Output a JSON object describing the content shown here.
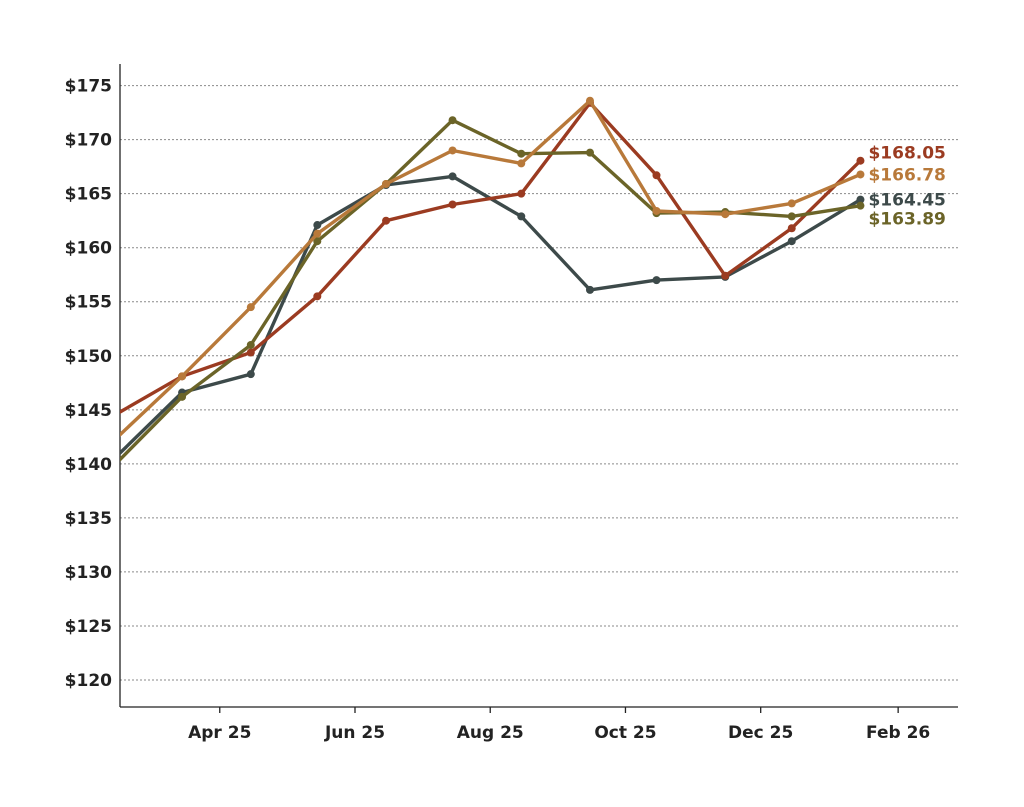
{
  "chart_data": {
    "type": "line",
    "title": "",
    "xlabel": "",
    "ylabel": "",
    "ylim": [
      117.5,
      177
    ],
    "xlim": [
      "2025-02-15",
      "2026-02-28"
    ],
    "grid": true,
    "legend": "none",
    "y_ticks": [
      120,
      125,
      130,
      135,
      140,
      145,
      150,
      155,
      160,
      165,
      170,
      175
    ],
    "y_tick_labels": [
      "$120",
      "$125",
      "$130",
      "$135",
      "$140",
      "$145",
      "$150",
      "$155",
      "$160",
      "$165",
      "$170",
      "$175"
    ],
    "x_ticks": [
      "2025-04-01",
      "2025-06-01",
      "2025-08-01",
      "2025-10-01",
      "2025-12-01",
      "2026-02-01"
    ],
    "x_tick_labels": [
      "Apr 25",
      "Jun 25",
      "Aug 25",
      "Oct 25",
      "Dec 25",
      "Feb 26"
    ],
    "series": [
      {
        "color": "#3d4a4a",
        "end_label": "$164.45",
        "points": [
          {
            "x": "2025-02-15",
            "y": 141.0
          },
          {
            "x": "2025-03-15",
            "y": 146.6
          },
          {
            "x": "2025-04-15",
            "y": 148.3
          },
          {
            "x": "2025-05-15",
            "y": 162.1
          },
          {
            "x": "2025-06-15",
            "y": 165.8
          },
          {
            "x": "2025-07-15",
            "y": 166.6
          },
          {
            "x": "2025-08-15",
            "y": 162.9
          },
          {
            "x": "2025-09-15",
            "y": 156.1
          },
          {
            "x": "2025-10-15",
            "y": 157.0
          },
          {
            "x": "2025-11-15",
            "y": 157.3
          },
          {
            "x": "2025-12-15",
            "y": 160.6
          },
          {
            "x": "2026-01-15",
            "y": 164.45
          }
        ]
      },
      {
        "color": "#9b3b21",
        "end_label": "$168.05",
        "points": [
          {
            "x": "2025-02-15",
            "y": 144.8
          },
          {
            "x": "2025-03-15",
            "y": 148.1
          },
          {
            "x": "2025-04-15",
            "y": 150.3
          },
          {
            "x": "2025-05-15",
            "y": 155.5
          },
          {
            "x": "2025-06-15",
            "y": 162.5
          },
          {
            "x": "2025-07-15",
            "y": 164.0
          },
          {
            "x": "2025-08-15",
            "y": 165.0
          },
          {
            "x": "2025-09-15",
            "y": 173.4
          },
          {
            "x": "2025-10-15",
            "y": 166.7
          },
          {
            "x": "2025-11-15",
            "y": 157.4
          },
          {
            "x": "2025-12-15",
            "y": 161.8
          },
          {
            "x": "2026-01-15",
            "y": 168.05
          }
        ]
      },
      {
        "color": "#6b6428",
        "end_label": "$163.89",
        "points": [
          {
            "x": "2025-02-15",
            "y": 140.4
          },
          {
            "x": "2025-03-15",
            "y": 146.2
          },
          {
            "x": "2025-04-15",
            "y": 151.0
          },
          {
            "x": "2025-05-15",
            "y": 160.6
          },
          {
            "x": "2025-06-15",
            "y": 165.9
          },
          {
            "x": "2025-07-15",
            "y": 171.8
          },
          {
            "x": "2025-08-15",
            "y": 168.7
          },
          {
            "x": "2025-09-15",
            "y": 168.8
          },
          {
            "x": "2025-10-15",
            "y": 163.2
          },
          {
            "x": "2025-11-15",
            "y": 163.3
          },
          {
            "x": "2025-12-15",
            "y": 162.9
          },
          {
            "x": "2026-01-15",
            "y": 163.89
          }
        ]
      },
      {
        "color": "#b8793a",
        "end_label": "$166.78",
        "points": [
          {
            "x": "2025-02-15",
            "y": 142.7
          },
          {
            "x": "2025-03-15",
            "y": 148.1
          },
          {
            "x": "2025-04-15",
            "y": 154.5
          },
          {
            "x": "2025-05-15",
            "y": 161.3
          },
          {
            "x": "2025-06-15",
            "y": 165.9
          },
          {
            "x": "2025-07-15",
            "y": 169.0
          },
          {
            "x": "2025-08-15",
            "y": 167.8
          },
          {
            "x": "2025-09-15",
            "y": 173.6
          },
          {
            "x": "2025-10-15",
            "y": 163.4
          },
          {
            "x": "2025-11-15",
            "y": 163.1
          },
          {
            "x": "2025-12-15",
            "y": 164.1
          },
          {
            "x": "2026-01-15",
            "y": 166.78
          }
        ]
      }
    ]
  }
}
